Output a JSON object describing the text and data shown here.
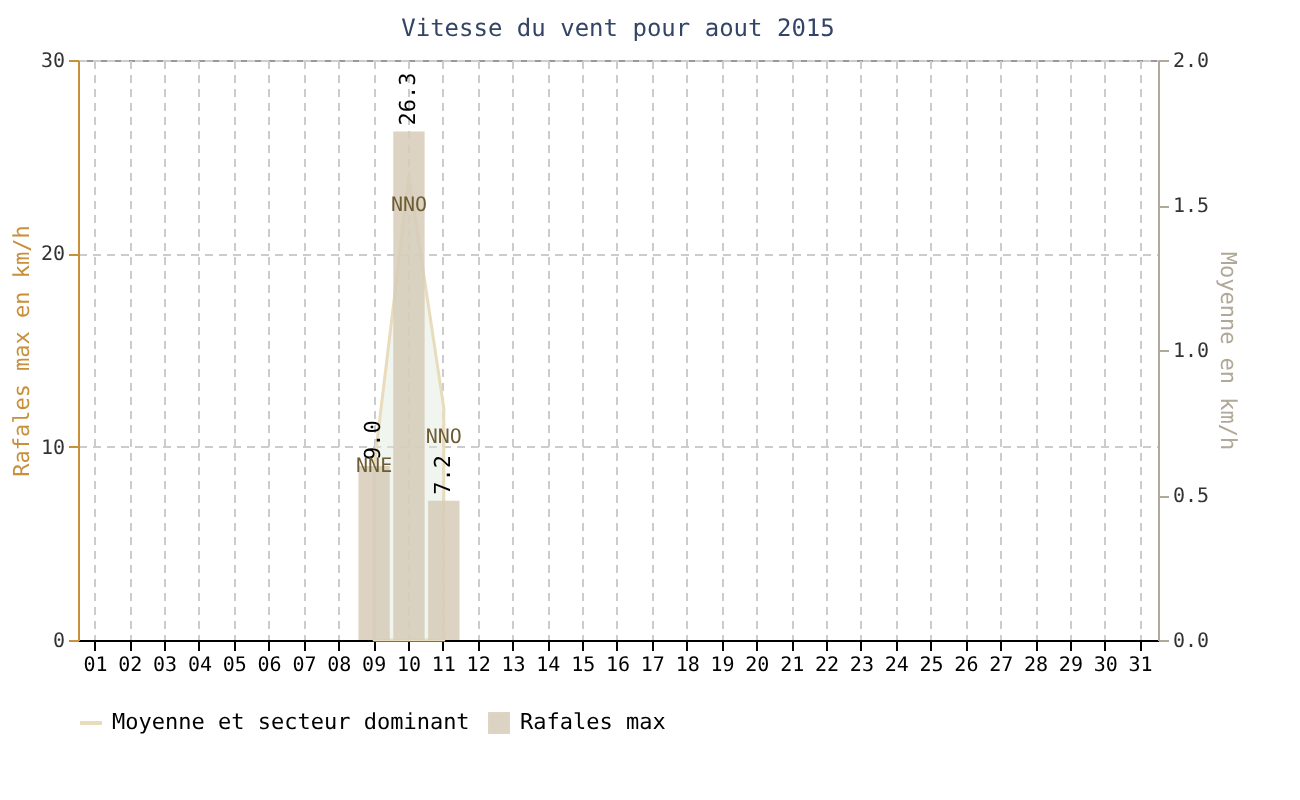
{
  "chart_data": {
    "type": "bar",
    "title": "Vitesse du vent pour aout 2015",
    "ylabel": "Rafales max en km/h",
    "y2label": "Moyenne en km/h",
    "categories": [
      "01",
      "02",
      "03",
      "04",
      "05",
      "06",
      "07",
      "08",
      "09",
      "10",
      "11",
      "12",
      "13",
      "14",
      "15",
      "16",
      "17",
      "18",
      "19",
      "20",
      "21",
      "22",
      "23",
      "24",
      "25",
      "26",
      "27",
      "28",
      "29",
      "30",
      "31"
    ],
    "series": [
      {
        "name": "Rafales max",
        "color": "#d6cbb8",
        "values": [
          null,
          null,
          null,
          null,
          null,
          null,
          null,
          null,
          9.0,
          26.3,
          7.2,
          null,
          null,
          null,
          null,
          null,
          null,
          null,
          null,
          null,
          null,
          null,
          null,
          null,
          null,
          null,
          null,
          null,
          null,
          null,
          null
        ],
        "value_labels": [
          null,
          null,
          null,
          null,
          null,
          null,
          null,
          null,
          "9.0",
          "26.3",
          "7.2",
          null,
          null,
          null,
          null,
          null,
          null,
          null,
          null,
          null,
          null,
          null,
          null,
          null,
          null,
          null,
          null,
          null,
          null,
          null,
          null
        ]
      },
      {
        "name": "Moyenne et secteur dominant",
        "type": "area",
        "axis": "y2",
        "color": "#e8dcbc",
        "values": [
          null,
          null,
          null,
          null,
          null,
          null,
          null,
          null,
          0.6,
          1.6,
          0.8,
          null,
          null,
          null,
          null,
          null,
          null,
          null,
          null,
          null,
          null,
          null,
          null,
          null,
          null,
          null,
          null,
          null,
          null,
          null,
          null
        ]
      }
    ],
    "annotations": [
      {
        "text": "NNE",
        "x": "09",
        "y": 9
      },
      {
        "text": "NNO",
        "x": "10",
        "y": 22.5
      },
      {
        "text": "NNO",
        "x": "11",
        "y": 10.5
      }
    ],
    "ylim": [
      0,
      30
    ],
    "yticks": [
      0,
      10,
      20,
      30
    ],
    "y2lim": [
      0,
      2
    ],
    "y2ticks": [
      {
        "value": 0,
        "label": "0.0"
      },
      {
        "value": 0.5,
        "label": "0.5"
      },
      {
        "value": 1,
        "label": "1.0"
      },
      {
        "value": 1.5,
        "label": "1.5"
      },
      {
        "value": 2,
        "label": "2.0"
      }
    ],
    "grid": true,
    "legend": "bottom"
  }
}
